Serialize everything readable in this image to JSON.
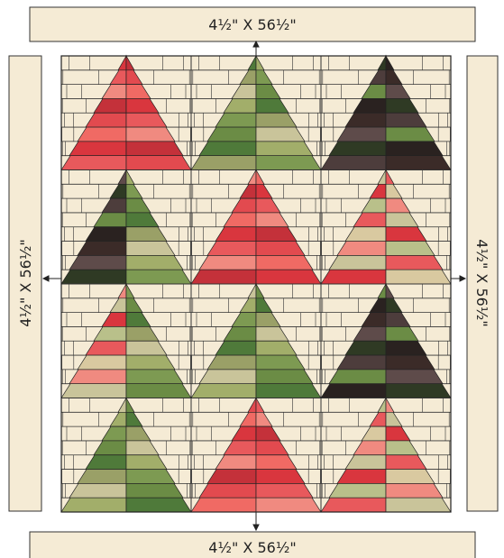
{
  "borders": {
    "top": "4½\" X 56½\"",
    "left": "4½\" X 56½\"",
    "right": "4½\" X 56½\"",
    "bottom": "4½\" X 56½\""
  }
}
